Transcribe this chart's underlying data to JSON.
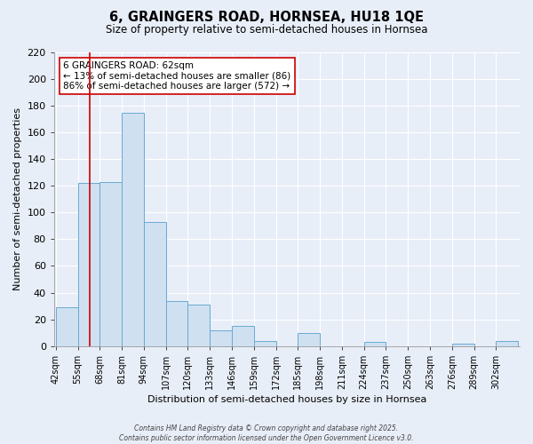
{
  "title": "6, GRAINGERS ROAD, HORNSEA, HU18 1QE",
  "subtitle": "Size of property relative to semi-detached houses in Hornsea",
  "xlabel": "Distribution of semi-detached houses by size in Hornsea",
  "ylabel": "Number of semi-detached properties",
  "bin_edges": [
    42,
    55,
    68,
    81,
    94,
    107,
    120,
    133,
    146,
    159,
    172,
    185,
    198,
    211,
    224,
    237,
    250,
    263,
    276,
    289,
    302,
    315
  ],
  "bin_labels": [
    "42sqm",
    "55sqm",
    "68sqm",
    "81sqm",
    "94sqm",
    "107sqm",
    "120sqm",
    "133sqm",
    "146sqm",
    "159sqm",
    "172sqm",
    "185sqm",
    "198sqm",
    "211sqm",
    "224sqm",
    "237sqm",
    "250sqm",
    "263sqm",
    "276sqm",
    "289sqm",
    "302sqm"
  ],
  "counts": [
    29,
    122,
    123,
    175,
    93,
    34,
    31,
    12,
    15,
    4,
    0,
    10,
    0,
    0,
    3,
    0,
    0,
    0,
    2,
    0,
    4
  ],
  "bar_color": "#cfe0f0",
  "bar_edge_color": "#6aaad4",
  "vline_x": 62,
  "vline_color": "#cc0000",
  "annotation_title": "6 GRAINGERS ROAD: 62sqm",
  "annotation_line1": "← 13% of semi-detached houses are smaller (86)",
  "annotation_line2": "86% of semi-detached houses are larger (572) →",
  "ylim": [
    0,
    220
  ],
  "yticks": [
    0,
    20,
    40,
    60,
    80,
    100,
    120,
    140,
    160,
    180,
    200,
    220
  ],
  "background_color": "#e8eef8",
  "grid_color": "#ffffff",
  "footer_line1": "Contains HM Land Registry data © Crown copyright and database right 2025.",
  "footer_line2": "Contains public sector information licensed under the Open Government Licence v3.0."
}
